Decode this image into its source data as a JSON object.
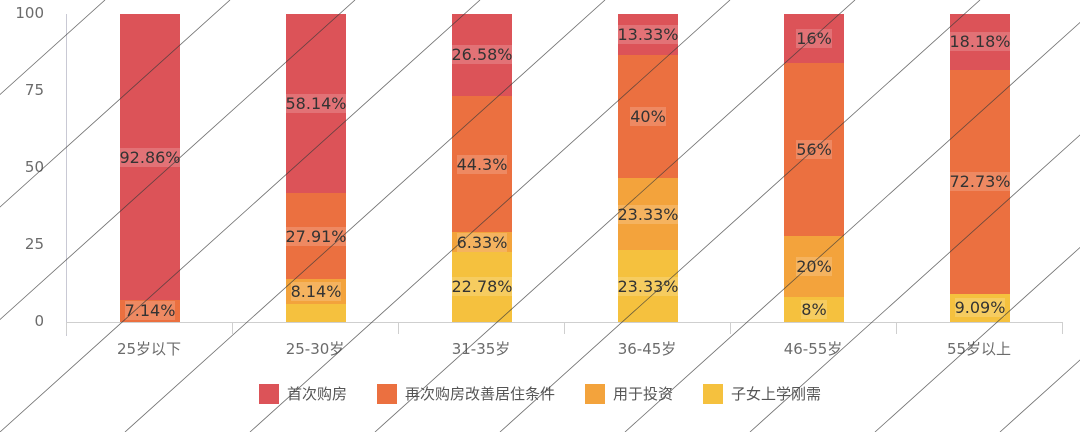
{
  "chart_data": {
    "type": "bar",
    "stacked": true,
    "percent": true,
    "title": "",
    "xlabel": "",
    "ylabel": "",
    "ylim": [
      0,
      100
    ],
    "yticks": [
      "0",
      "25",
      "50",
      "75",
      "100"
    ],
    "categories": [
      "25岁以下",
      "25-30岁",
      "31-35岁",
      "36-45岁",
      "46-55岁",
      "55岁以上"
    ],
    "series": [
      {
        "name": "子女上学刚需",
        "color": "#F5C13E",
        "values": [
          0,
          5.81,
          22.78,
          23.33,
          8,
          9.09
        ],
        "labels": [
          "",
          "",
          "22.78%",
          "23.33%",
          "8%",
          "9.09%"
        ]
      },
      {
        "name": "用于投资",
        "color": "#F3A33C",
        "values": [
          0,
          8.14,
          6.33,
          23.33,
          20,
          0
        ],
        "labels": [
          "",
          "8.14%",
          "6.33%",
          "23.33%",
          "20%",
          ""
        ]
      },
      {
        "name": "再次购房改善居住条件",
        "color": "#EB7040",
        "values": [
          7.14,
          27.91,
          44.3,
          40,
          56,
          72.73
        ],
        "labels": [
          "7.14%",
          "27.91%",
          "44.3%",
          "40%",
          "56%",
          "72.73%"
        ]
      },
      {
        "name": "首次购房",
        "color": "#DC5358",
        "values": [
          92.86,
          58.14,
          26.58,
          13.33,
          16,
          18.18
        ],
        "labels": [
          "92.86%",
          "58.14%",
          "26.58%",
          "13.33%",
          "16%",
          "18.18%"
        ]
      }
    ],
    "legend": {
      "position": "bottom",
      "entries": [
        {
          "label": "首次购房",
          "color": "#DC5358"
        },
        {
          "label": "再次购房改善居住条件",
          "color": "#EB7040"
        },
        {
          "label": "用于投资",
          "color": "#F3A33C"
        },
        {
          "label": "子女上学刚需",
          "color": "#F5C13E"
        }
      ]
    },
    "grid": false
  }
}
